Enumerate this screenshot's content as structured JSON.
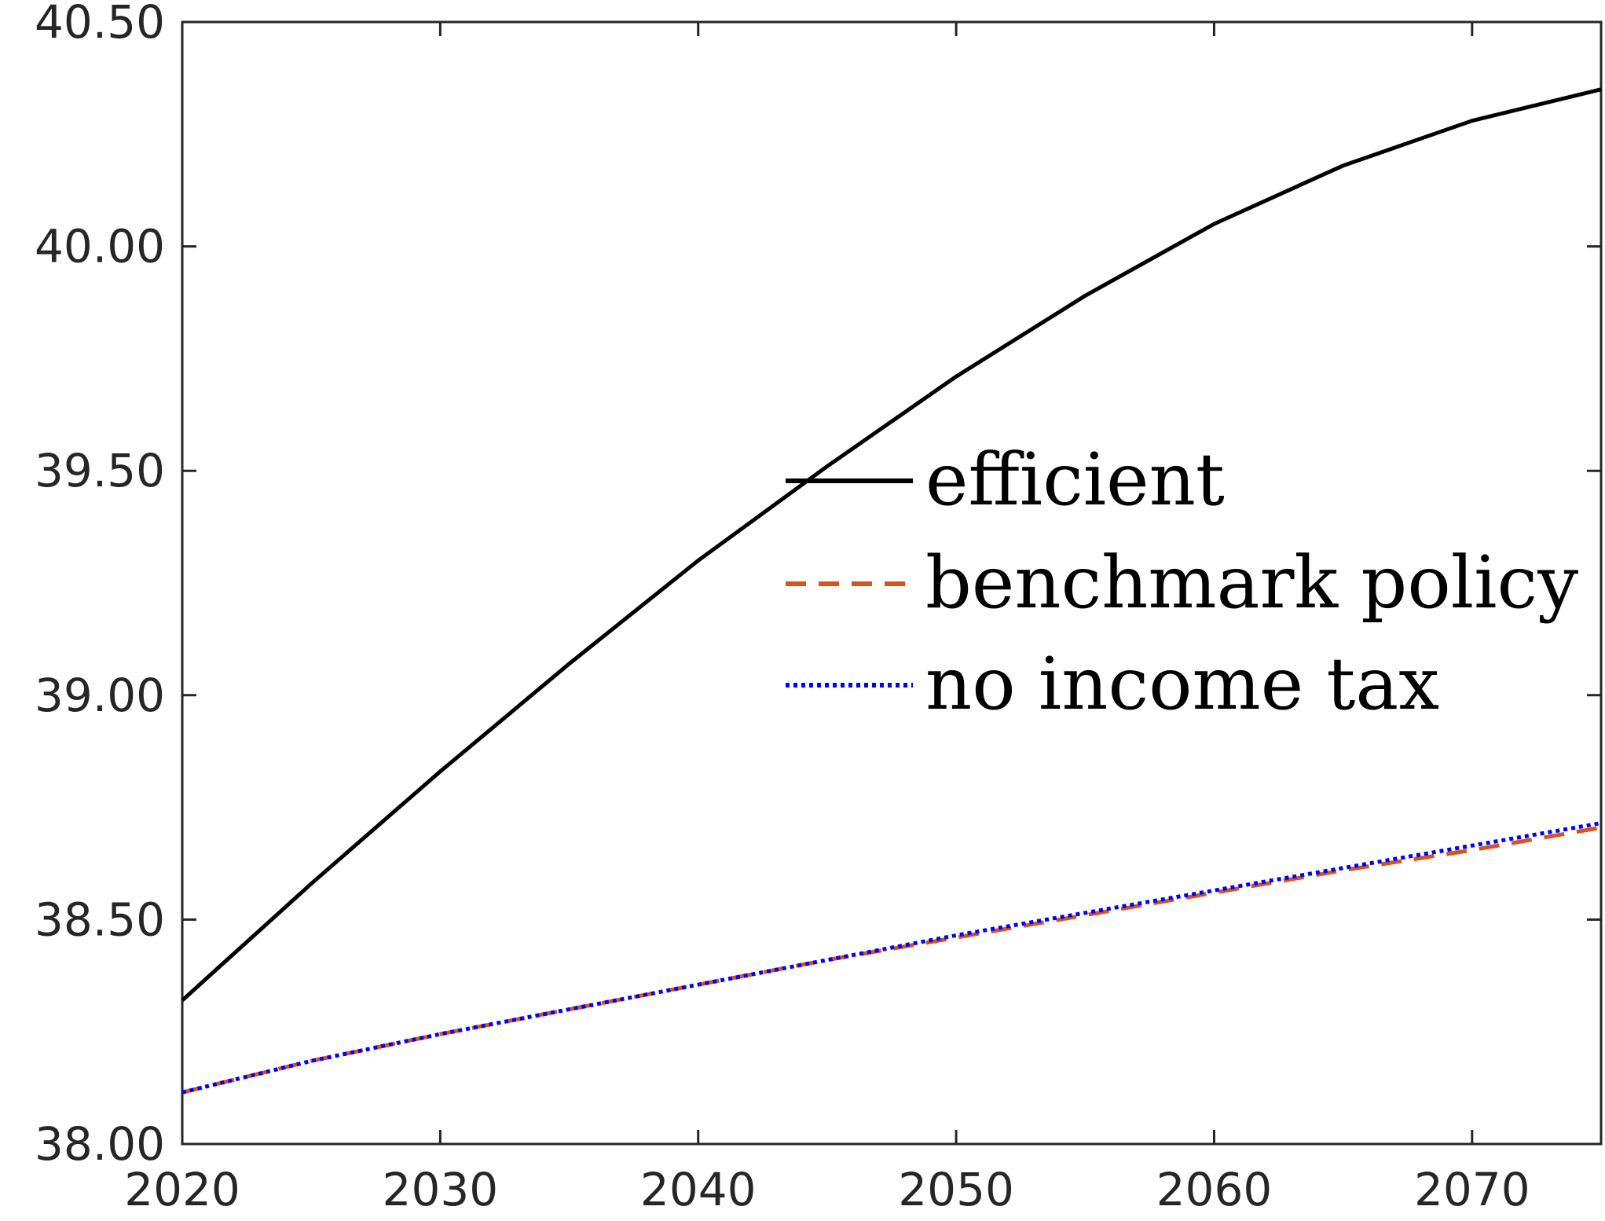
{
  "chart_data": {
    "type": "line",
    "title": "",
    "xlabel": "",
    "ylabel": "",
    "xlim": [
      2020,
      2075
    ],
    "ylim": [
      38.0,
      40.5
    ],
    "x_ticks": [
      2020,
      2030,
      2040,
      2050,
      2060,
      2070
    ],
    "x_tick_labels": [
      "2020",
      "2030",
      "2040",
      "2050",
      "2060",
      "2070"
    ],
    "y_ticks": [
      38.0,
      38.5,
      39.0,
      39.5,
      40.0,
      40.5
    ],
    "y_tick_labels": [
      "38.00",
      "38.50",
      "39.00",
      "39.50",
      "40.00",
      "40.50"
    ],
    "grid": false,
    "legend_position": "center-right",
    "x": [
      2020,
      2025,
      2030,
      2035,
      2040,
      2045,
      2050,
      2055,
      2060,
      2065,
      2070,
      2075
    ],
    "series": [
      {
        "name": "efficient",
        "color": "#000000",
        "style": "solid",
        "values": [
          38.32,
          38.58,
          38.83,
          39.07,
          39.3,
          39.51,
          39.71,
          39.89,
          40.05,
          40.18,
          40.28,
          40.35
        ]
      },
      {
        "name": "benchmark policy",
        "color": "#d95319",
        "style": "dashed",
        "values": [
          38.115,
          38.185,
          38.245,
          38.3,
          38.355,
          38.41,
          38.46,
          38.51,
          38.56,
          38.61,
          38.655,
          38.705
        ]
      },
      {
        "name": "no income tax",
        "color": "#0000ff",
        "style": "dotted",
        "values": [
          38.115,
          38.185,
          38.245,
          38.3,
          38.355,
          38.41,
          38.465,
          38.515,
          38.565,
          38.615,
          38.665,
          38.715
        ]
      }
    ]
  }
}
